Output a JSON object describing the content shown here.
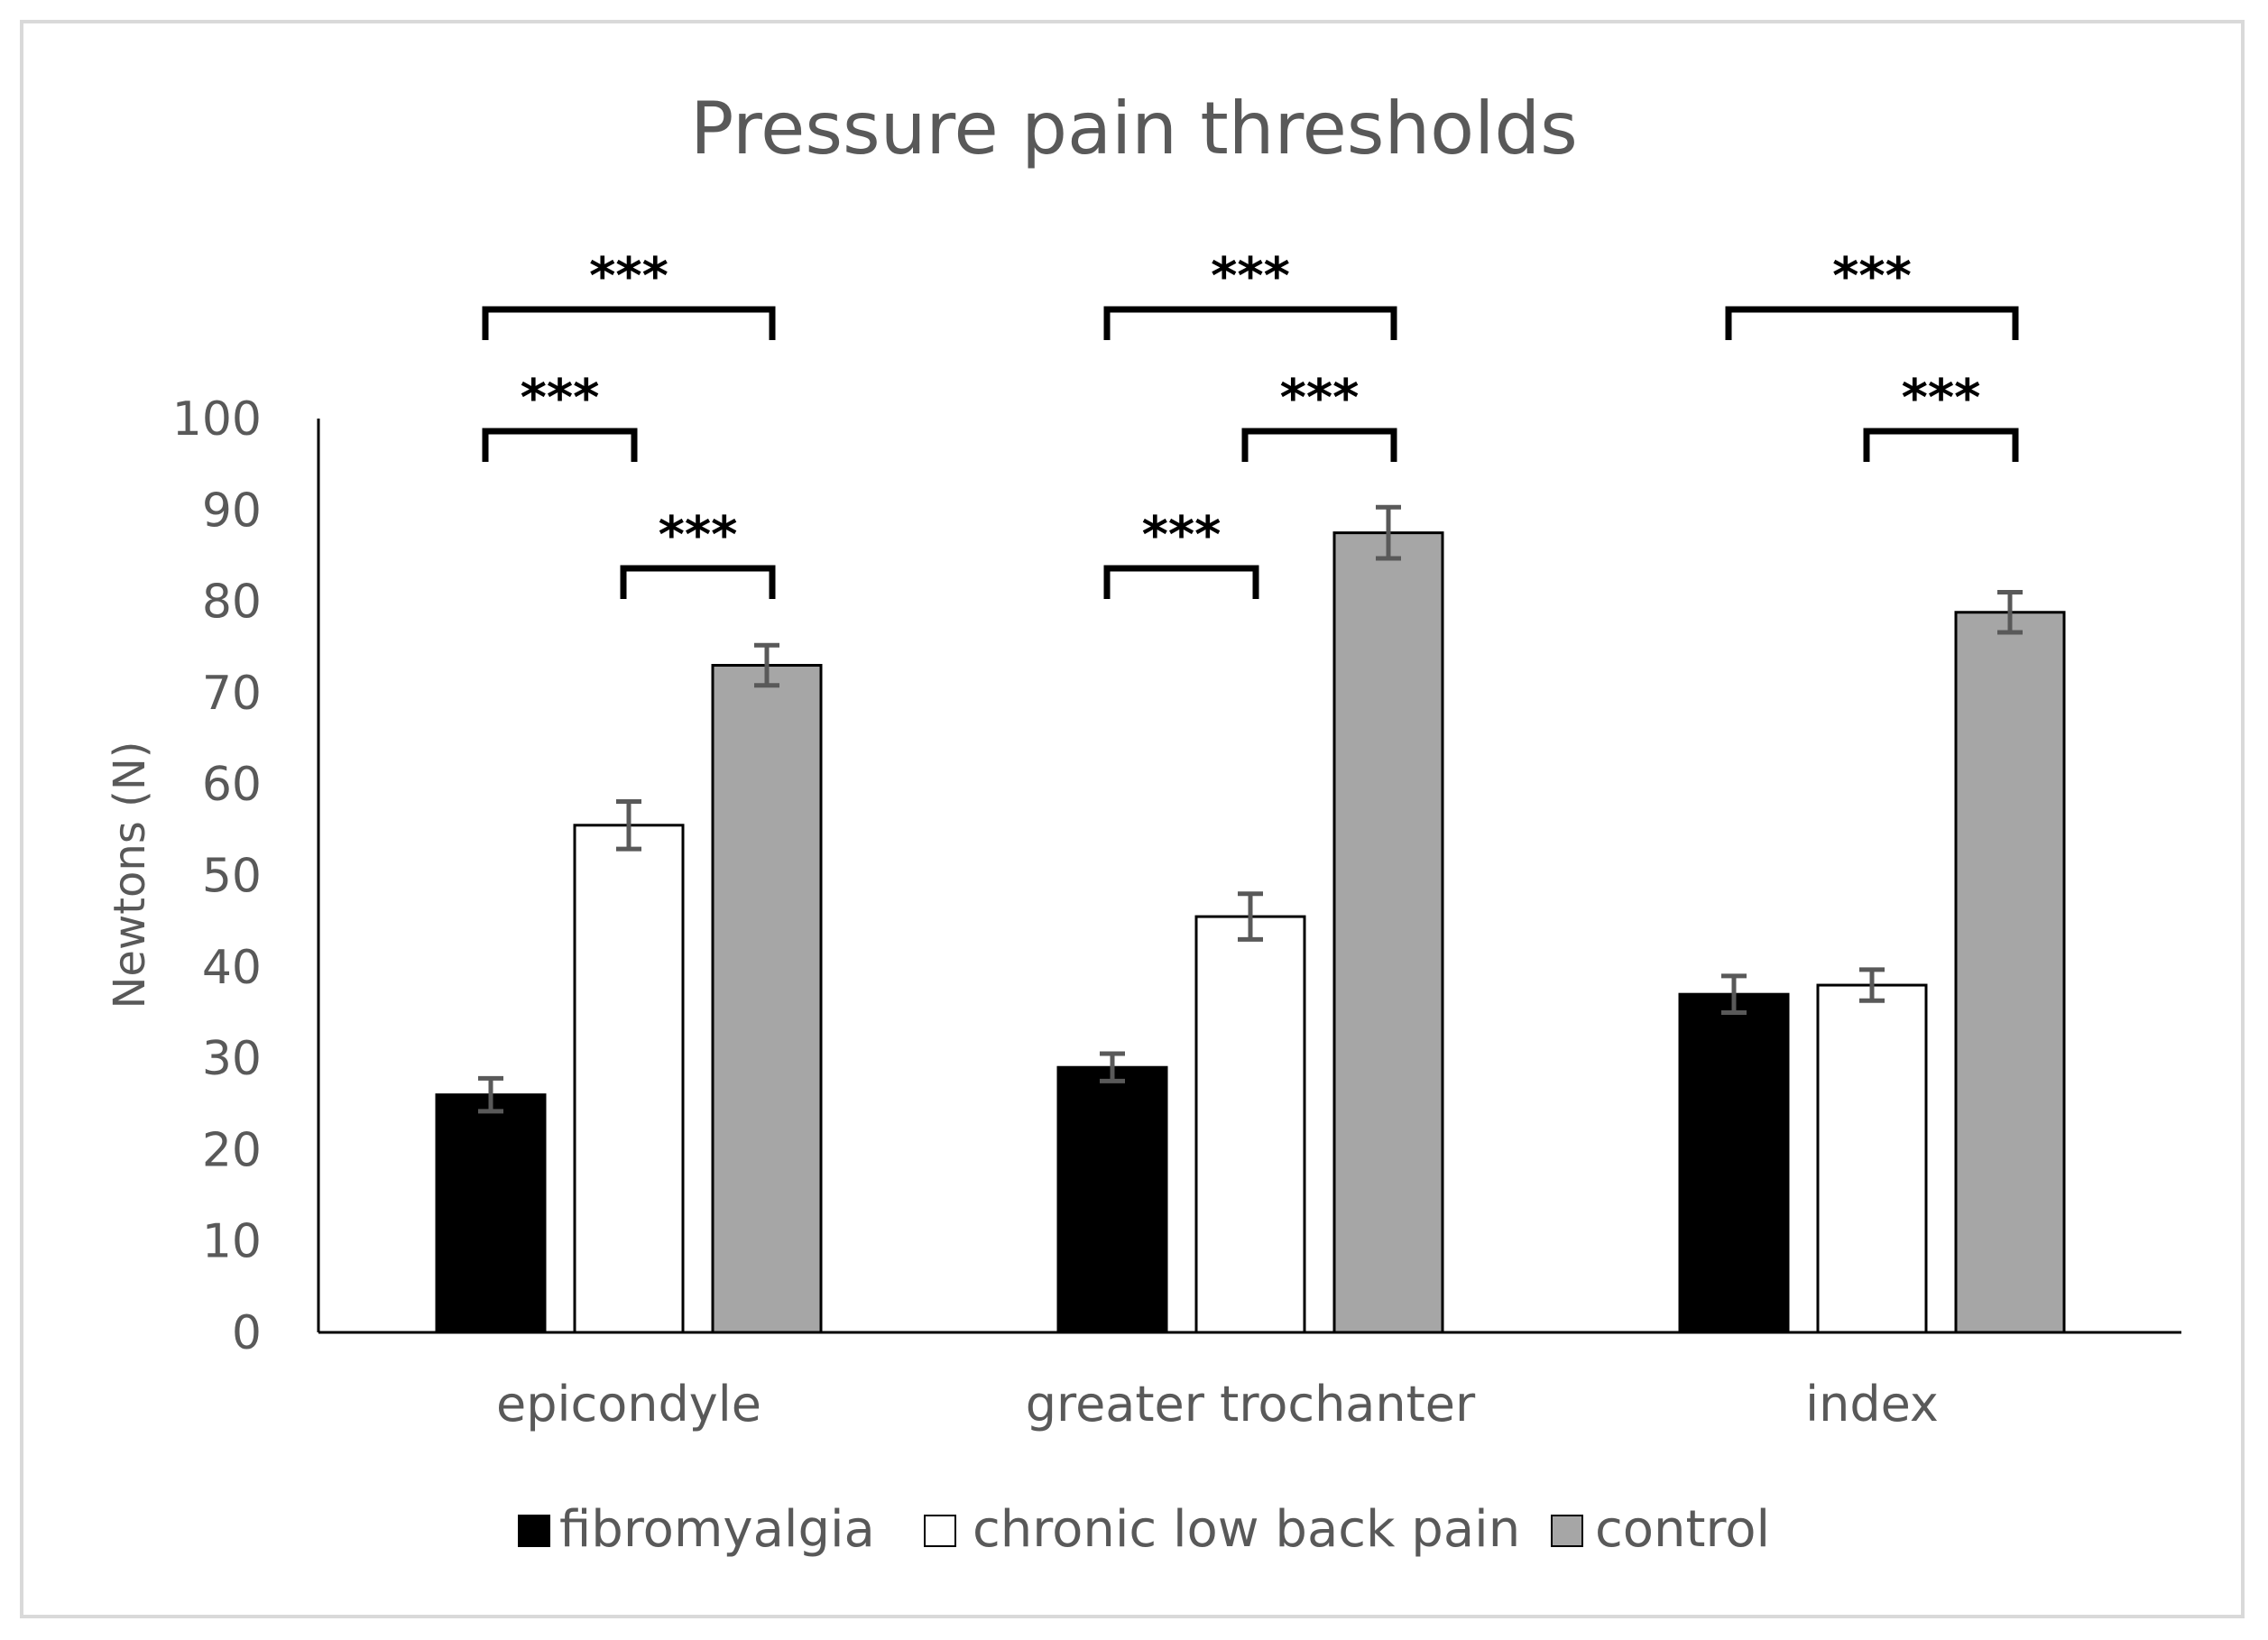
{
  "chart_data": {
    "type": "bar",
    "title": "Pressure pain thresholds",
    "ylabel": "Newtons (N)",
    "xlabel": "",
    "ylim": [
      0,
      100
    ],
    "yticks": [
      0,
      10,
      20,
      30,
      40,
      50,
      60,
      70,
      80,
      90,
      100
    ],
    "categories": [
      "epicondyle",
      "greater trochanter",
      "index"
    ],
    "series": [
      {
        "name": "fibromyalgia",
        "color": "#000000",
        "values": [
          26,
          29,
          37
        ],
        "errors": [
          1.8,
          1.5,
          2.0
        ]
      },
      {
        "name": "chronic low back pain",
        "color": "#ffffff",
        "values": [
          55.5,
          45.5,
          38
        ],
        "errors": [
          2.6,
          2.5,
          1.7
        ]
      },
      {
        "name": "control",
        "color": "#a6a6a6",
        "values": [
          73,
          87.5,
          78.8
        ],
        "errors": [
          2.2,
          2.8,
          2.2
        ]
      }
    ],
    "legend_position": "bottom",
    "significance": [
      {
        "category": 0,
        "from": 0,
        "to": 2,
        "level": 2,
        "label": "***"
      },
      {
        "category": 0,
        "from": 0,
        "to": 1,
        "level": 1,
        "label": "***"
      },
      {
        "category": 0,
        "from": 1,
        "to": 2,
        "level": 0,
        "label": "***"
      },
      {
        "category": 1,
        "from": 0,
        "to": 2,
        "level": 2,
        "label": "***"
      },
      {
        "category": 1,
        "from": 1,
        "to": 2,
        "level": 1,
        "label": "***"
      },
      {
        "category": 1,
        "from": 0,
        "to": 1,
        "level": 0,
        "label": "***"
      },
      {
        "category": 2,
        "from": 0,
        "to": 2,
        "level": 2,
        "label": "***"
      },
      {
        "category": 2,
        "from": 1,
        "to": 2,
        "level": 1,
        "label": "***"
      }
    ]
  }
}
